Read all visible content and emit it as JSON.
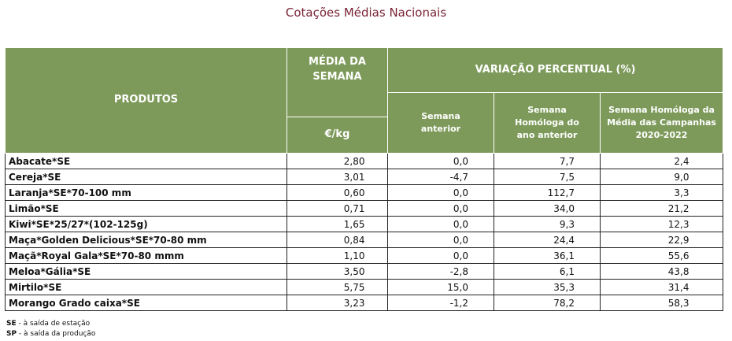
{
  "title": "Cotações Médias Nacionais",
  "header": {
    "produtos": "PRODUTOS",
    "media_semana": "MÉDIA DA SEMANA",
    "unit": "€/kg",
    "variacao": "VARIAÇÃO PERCENTUAL (%)",
    "semana_anterior": "Semana anterior",
    "semana_homologa": "Semana Homóloga do ano anterior",
    "semana_homologa_media": "Semana Homóloga da Média das Campanhas 2020-2022"
  },
  "rows": [
    {
      "produto": "Abacate*SE",
      "media": "2,80",
      "anterior": "0,0",
      "homologa": "7,7",
      "media_campanhas": "2,4"
    },
    {
      "produto": "Cereja*SE",
      "media": "3,01",
      "anterior": "-4,7",
      "homologa": "7,5",
      "media_campanhas": "9,0"
    },
    {
      "produto": "Laranja*SE*70-100 mm",
      "media": "0,60",
      "anterior": "0,0",
      "homologa": "112,7",
      "media_campanhas": "3,3"
    },
    {
      "produto": "Limão*SE",
      "media": "0,71",
      "anterior": "0,0",
      "homologa": "34,0",
      "media_campanhas": "21,2"
    },
    {
      "produto": "Kiwi*SE*25/27*(102-125g)",
      "media": "1,65",
      "anterior": "0,0",
      "homologa": "9,3",
      "media_campanhas": "12,3"
    },
    {
      "produto": "Maça*Golden Delicious*SE*70-80 mm",
      "media": "0,84",
      "anterior": "0,0",
      "homologa": "24,4",
      "media_campanhas": "22,9"
    },
    {
      "produto": "Maçã*Royal Gala*SE*70-80 mmm",
      "media": "1,10",
      "anterior": "0,0",
      "homologa": "36,1",
      "media_campanhas": "55,6"
    },
    {
      "produto": "Meloa*Gália*SE",
      "media": "3,50",
      "anterior": "-2,8",
      "homologa": "6,1",
      "media_campanhas": "43,8"
    },
    {
      "produto": "Mirtilo*SE",
      "media": "5,75",
      "anterior": "15,0",
      "homologa": "35,3",
      "media_campanhas": "31,4"
    },
    {
      "produto": "Morango Grado caixa*SE",
      "media": "3,23",
      "anterior": "-1,2",
      "homologa": "78,2",
      "media_campanhas": "58,3"
    }
  ],
  "notes": [
    {
      "abbr": "SE",
      "text": " - à saída de estação"
    },
    {
      "abbr": "SP",
      "text": " - à saída da produção"
    }
  ]
}
